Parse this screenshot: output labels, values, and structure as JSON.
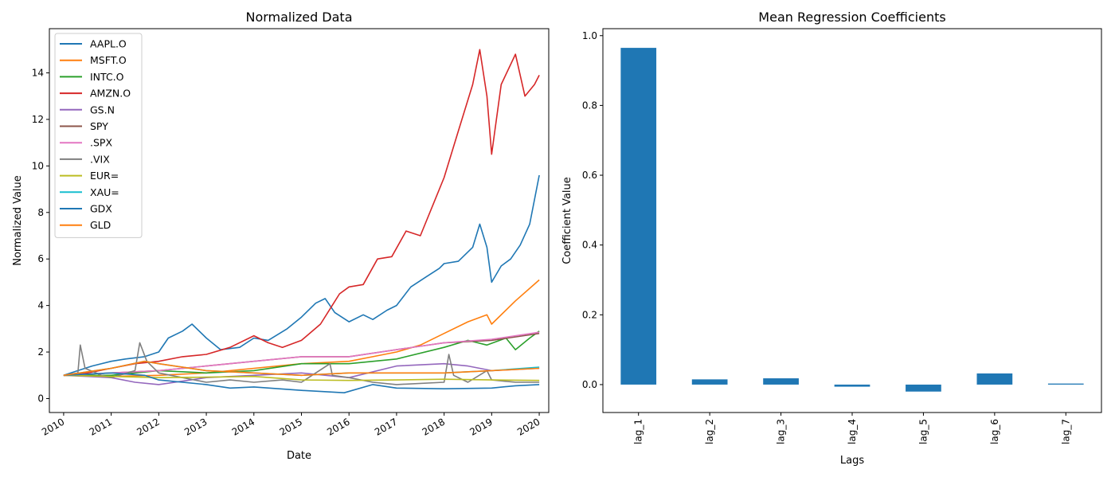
{
  "chart_data": [
    {
      "type": "line",
      "title": "Normalized Data",
      "xlabel": "Date",
      "ylabel": "Normalized Value",
      "xlim": [
        2009.7,
        2020.2
      ],
      "ylim": [
        -0.6,
        15.9
      ],
      "x_ticks": [
        "2010",
        "2011",
        "2012",
        "2013",
        "2014",
        "2015",
        "2016",
        "2017",
        "2018",
        "2019",
        "2020"
      ],
      "y_ticks": [
        "0",
        "2",
        "4",
        "6",
        "8",
        "10",
        "12",
        "14"
      ],
      "legend_position": "top-left",
      "series": [
        {
          "name": "AAPL.O",
          "color": "#1f77b4",
          "x": [
            2010,
            2010.3,
            2010.6,
            2011,
            2011.3,
            2011.7,
            2012,
            2012.2,
            2012.5,
            2012.7,
            2013,
            2013.3,
            2013.7,
            2014,
            2014.3,
            2014.7,
            2015,
            2015.3,
            2015.5,
            2015.7,
            2016,
            2016.3,
            2016.5,
            2016.8,
            2017,
            2017.3,
            2017.6,
            2017.9,
            2018,
            2018.3,
            2018.6,
            2018.75,
            2018.9,
            2019,
            2019.2,
            2019.4,
            2019.6,
            2019.8,
            2020
          ],
          "values": [
            1.0,
            1.2,
            1.4,
            1.6,
            1.7,
            1.8,
            2.0,
            2.6,
            2.9,
            3.2,
            2.6,
            2.1,
            2.2,
            2.6,
            2.5,
            3.0,
            3.5,
            4.1,
            4.3,
            3.7,
            3.3,
            3.6,
            3.4,
            3.8,
            4.0,
            4.8,
            5.2,
            5.6,
            5.8,
            5.9,
            6.5,
            7.5,
            6.5,
            5.0,
            5.7,
            6.0,
            6.6,
            7.5,
            9.6
          ]
        },
        {
          "name": "MSFT.O",
          "color": "#ff7f0e",
          "x": [
            2010,
            2011,
            2012,
            2013,
            2014,
            2015,
            2016,
            2016.5,
            2017,
            2017.5,
            2018,
            2018.5,
            2018.9,
            2019,
            2019.5,
            2020
          ],
          "values": [
            1.0,
            0.95,
            1.0,
            1.1,
            1.3,
            1.5,
            1.6,
            1.8,
            2.0,
            2.3,
            2.8,
            3.3,
            3.6,
            3.2,
            4.2,
            5.1
          ]
        },
        {
          "name": "INTC.O",
          "color": "#2ca02c",
          "x": [
            2010,
            2011,
            2012,
            2013,
            2014,
            2015,
            2016,
            2017,
            2018,
            2018.5,
            2018.9,
            2019.3,
            2019.5,
            2019.8,
            2020
          ],
          "values": [
            1.0,
            1.0,
            1.2,
            1.1,
            1.2,
            1.5,
            1.5,
            1.7,
            2.2,
            2.5,
            2.3,
            2.6,
            2.1,
            2.6,
            2.9
          ]
        },
        {
          "name": "AMZN.O",
          "color": "#d62728",
          "x": [
            2010,
            2010.5,
            2011,
            2011.5,
            2012,
            2012.5,
            2013,
            2013.5,
            2014,
            2014.3,
            2014.6,
            2015,
            2015.4,
            2015.8,
            2016,
            2016.3,
            2016.6,
            2016.9,
            2017.2,
            2017.5,
            2017.8,
            2018,
            2018.3,
            2018.6,
            2018.75,
            2018.9,
            2019,
            2019.2,
            2019.5,
            2019.7,
            2019.9,
            2020
          ],
          "values": [
            1.0,
            1.1,
            1.3,
            1.5,
            1.6,
            1.8,
            1.9,
            2.2,
            2.7,
            2.4,
            2.2,
            2.5,
            3.2,
            4.5,
            4.8,
            4.9,
            6.0,
            6.1,
            7.2,
            7.0,
            8.5,
            9.5,
            11.5,
            13.5,
            15.0,
            13.0,
            10.5,
            13.5,
            14.8,
            13.0,
            13.5,
            13.9
          ]
        },
        {
          "name": "GS.N",
          "color": "#9467bd",
          "x": [
            2010,
            2011,
            2011.5,
            2012,
            2013,
            2014,
            2015,
            2016,
            2017,
            2018,
            2018.5,
            2019,
            2020
          ],
          "values": [
            1.0,
            0.9,
            0.7,
            0.6,
            0.9,
            1.0,
            1.1,
            0.9,
            1.4,
            1.5,
            1.4,
            1.2,
            1.3
          ]
        },
        {
          "name": "SPY",
          "color": "#8c564b",
          "x": [
            2010,
            2011,
            2012,
            2013,
            2014,
            2015,
            2016,
            2017,
            2018,
            2019,
            2020
          ],
          "values": [
            1.0,
            1.1,
            1.2,
            1.4,
            1.6,
            1.8,
            1.8,
            2.1,
            2.4,
            2.5,
            2.8
          ]
        },
        {
          "name": ".SPX",
          "color": "#e377c2",
          "x": [
            2010,
            2011,
            2012,
            2013,
            2014,
            2015,
            2016,
            2017,
            2018,
            2019,
            2020
          ],
          "values": [
            1.0,
            1.1,
            1.2,
            1.4,
            1.6,
            1.8,
            1.8,
            2.1,
            2.4,
            2.55,
            2.85
          ]
        },
        {
          "name": ".VIX",
          "color": "#7f7f7f",
          "x": [
            2010,
            2010.3,
            2010.35,
            2010.45,
            2010.8,
            2011,
            2011.5,
            2011.6,
            2011.75,
            2012,
            2012.5,
            2013,
            2013.5,
            2014,
            2014.6,
            2015,
            2015.6,
            2015.65,
            2016,
            2016.5,
            2017,
            2018,
            2018.1,
            2018.2,
            2018.5,
            2018.9,
            2019,
            2019.5,
            2020
          ],
          "values": [
            1.0,
            1.1,
            2.3,
            1.3,
            1.0,
            0.9,
            1.2,
            2.4,
            1.6,
            1.1,
            0.9,
            0.7,
            0.8,
            0.7,
            0.8,
            0.7,
            1.5,
            1.0,
            0.9,
            0.7,
            0.6,
            0.7,
            1.9,
            1.0,
            0.7,
            1.2,
            0.8,
            0.7,
            0.7
          ]
        },
        {
          "name": "EUR=",
          "color": "#bcbd22",
          "x": [
            2010,
            2011,
            2012,
            2013,
            2014,
            2015,
            2016,
            2017,
            2018,
            2019,
            2020
          ],
          "values": [
            1.0,
            0.95,
            0.9,
            0.92,
            0.95,
            0.8,
            0.78,
            0.8,
            0.83,
            0.8,
            0.78
          ]
        },
        {
          "name": "XAU=",
          "color": "#17becf",
          "x": [
            2010,
            2011,
            2011.7,
            2012,
            2013,
            2014,
            2015,
            2016,
            2017,
            2018,
            2019,
            2020
          ],
          "values": [
            1.0,
            1.3,
            1.6,
            1.5,
            1.2,
            1.1,
            1.0,
            1.1,
            1.1,
            1.1,
            1.2,
            1.35
          ]
        },
        {
          "name": "GDX",
          "color": "#1f77b4",
          "x": [
            2010,
            2011,
            2011.7,
            2012,
            2013,
            2013.5,
            2014,
            2015,
            2015.9,
            2016.5,
            2017,
            2018,
            2019,
            2019.5,
            2020
          ],
          "values": [
            1.0,
            1.1,
            1.0,
            0.8,
            0.6,
            0.45,
            0.5,
            0.35,
            0.25,
            0.6,
            0.45,
            0.42,
            0.45,
            0.55,
            0.6
          ]
        },
        {
          "name": "GLD",
          "color": "#ff7f0e",
          "x": [
            2010,
            2011,
            2011.7,
            2012,
            2013,
            2014,
            2015,
            2016,
            2017,
            2018,
            2019,
            2020
          ],
          "values": [
            1.0,
            1.3,
            1.6,
            1.5,
            1.2,
            1.1,
            1.0,
            1.1,
            1.1,
            1.1,
            1.2,
            1.3
          ]
        }
      ]
    },
    {
      "type": "bar",
      "title": "Mean Regression Coefficients",
      "xlabel": "Lags",
      "ylabel": "Coefficient Value",
      "categories": [
        "lag_1",
        "lag_2",
        "lag_3",
        "lag_4",
        "lag_5",
        "lag_6",
        "lag_7"
      ],
      "values": [
        0.965,
        0.015,
        0.018,
        -0.006,
        -0.02,
        0.032,
        0.003
      ],
      "ylim": [
        -0.08,
        1.02
      ],
      "y_ticks": [
        "0.0",
        "0.2",
        "0.4",
        "0.6",
        "0.8",
        "1.0"
      ],
      "color": "#1f77b4"
    }
  ]
}
